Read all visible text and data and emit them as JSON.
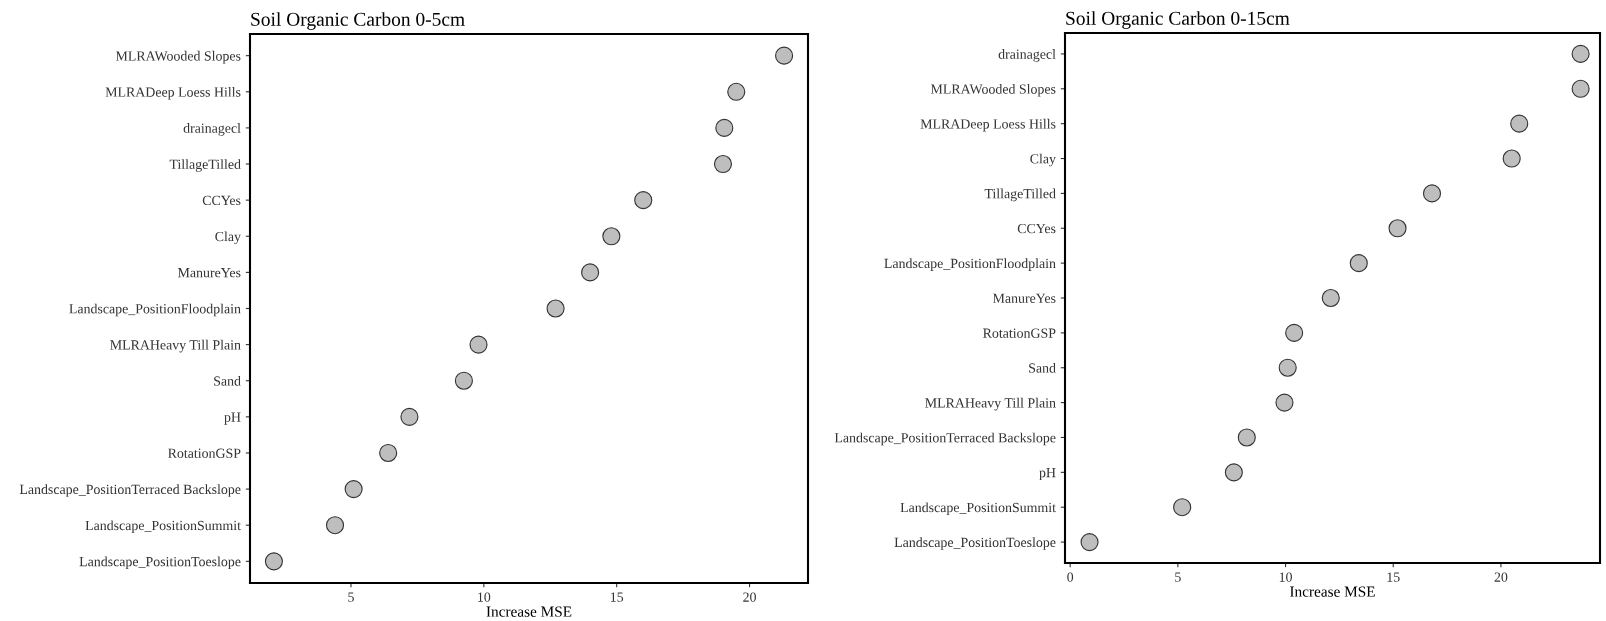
{
  "chart_data": [
    {
      "type": "scatter",
      "title": "Soil Organic Carbon 0-5cm",
      "xlabel": "Increase MSE",
      "orientation": "horizontal",
      "marker": "circle",
      "grid": false,
      "legend": false,
      "categories": [
        "MLRAWooded Slopes",
        "MLRADeep Loess Hills",
        "drainagecl",
        "TillageTilled",
        "CCYes",
        "Clay",
        "ManureYes",
        "Landscape_PositionFloodplain",
        "MLRAHeavy Till Plain",
        "Sand",
        "pH",
        "RotationGSP",
        "Landscape_PositionTerraced Backslope",
        "Landscape_PositionSummit",
        "Landscape_PositionToeslope"
      ],
      "series": [
        {
          "color": "#bebebe",
          "values": [
            21.3,
            19.5,
            19.05,
            19.0,
            16.0,
            14.8,
            14.0,
            12.7,
            9.8,
            9.25,
            7.2,
            6.4,
            5.1,
            4.4,
            2.1
          ]
        }
      ],
      "xlim": [
        1.2,
        22.2
      ],
      "xticks": [
        5,
        10,
        15,
        20
      ]
    },
    {
      "type": "scatter",
      "title": "Soil Organic Carbon 0-15cm",
      "xlabel": "Increase MSE",
      "orientation": "horizontal",
      "marker": "circle",
      "grid": false,
      "legend": false,
      "categories": [
        "drainagecl",
        "MLRAWooded Slopes",
        "MLRADeep Loess Hills",
        "Clay",
        "TillageTilled",
        "CCYes",
        "Landscape_PositionFloodplain",
        "ManureYes",
        "RotationGSP",
        "Sand",
        "MLRAHeavy Till Plain",
        "Landscape_PositionTerraced Backslope",
        "pH",
        "Landscape_PositionSummit",
        "Landscape_PositionToeslope"
      ],
      "series": [
        {
          "color": "#bebebe",
          "values": [
            23.7,
            23.7,
            20.85,
            20.5,
            16.8,
            15.2,
            13.4,
            12.1,
            10.4,
            10.1,
            9.95,
            8.2,
            7.6,
            5.2,
            0.9
          ]
        }
      ],
      "xlim": [
        -0.24,
        24.6
      ],
      "xticks": [
        0,
        5,
        10,
        15,
        20
      ]
    }
  ]
}
